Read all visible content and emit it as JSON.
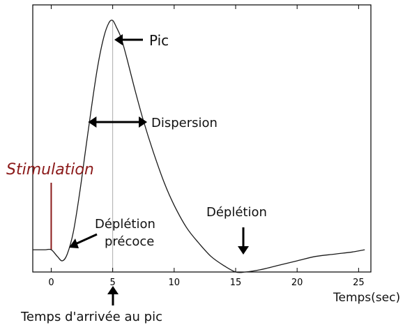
{
  "chart_data": {
    "type": "line",
    "title": "",
    "xlabel": "Temps(sec)",
    "ylabel": "",
    "xlim": [
      -1.5,
      26
    ],
    "ylim": [
      -0.1,
      1.1
    ],
    "xticks": [
      {
        "value": 0,
        "label": "0"
      },
      {
        "value": 5,
        "label": "5"
      },
      {
        "value": 10,
        "label": "10"
      },
      {
        "value": 15,
        "label": "15"
      },
      {
        "value": 20,
        "label": "20"
      },
      {
        "value": 25,
        "label": "25"
      }
    ],
    "grid": false,
    "series": [
      {
        "x": [
          -1.5,
          -0.5,
          0,
          0.5,
          0.9,
          1.3,
          1.8,
          2.3,
          2.8,
          3.3,
          3.8,
          4.3,
          4.7,
          5.0,
          5.3,
          5.7,
          6.2,
          6.8,
          7.5,
          8.3,
          9.2,
          10.0,
          11.0,
          12.0,
          13.0,
          14.0,
          15.0,
          15.8,
          17.0,
          18.5,
          20.0,
          21.5,
          23.0,
          24.5,
          25.5
        ],
        "y": [
          0.0,
          0.0,
          0.0,
          -0.03,
          -0.05,
          -0.02,
          0.08,
          0.25,
          0.45,
          0.65,
          0.83,
          0.96,
          1.02,
          1.03,
          1.0,
          0.95,
          0.85,
          0.72,
          0.58,
          0.44,
          0.3,
          0.2,
          0.1,
          0.03,
          -0.03,
          -0.07,
          -0.1,
          -0.1,
          -0.09,
          -0.07,
          -0.05,
          -0.03,
          -0.02,
          -0.01,
          0.0
        ],
        "color": "#1a1a1a"
      }
    ],
    "annotations": {
      "peak": "Pic",
      "dispersion": "Dispersion",
      "stimulation": "Stimulation",
      "early_depletion_line1": "Déplétion",
      "early_depletion_line2": "précoce",
      "depletion": "Déplétion",
      "time_to_peak": "Temps d'arrivée au pic"
    },
    "stimulation_x": 0,
    "peak_x": 5,
    "dispersion_range": [
      3,
      7.8
    ],
    "colors": {
      "stimulation": "#8b1a1a",
      "curve": "#1a1a1a",
      "arrows": "#000000",
      "peak_line": "#aaaaaa"
    }
  }
}
